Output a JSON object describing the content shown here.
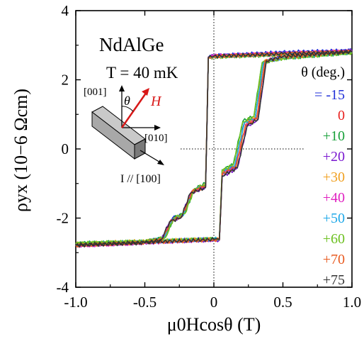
{
  "chart_data": {
    "type": "line",
    "xlabel": "μ0Hcosθ (T)",
    "ylabel": "ρyx (10−6 Ωcm)",
    "xlim": [
      -1.0,
      1.0
    ],
    "ylim": [
      -4,
      4
    ],
    "x_ticks": [
      "-1.0",
      "-0.5",
      "0",
      "0.5",
      "1.0"
    ],
    "x_tick_values": [
      -1.0,
      -0.5,
      0,
      0.5,
      1.0
    ],
    "y_ticks": [
      "4",
      "2",
      "0",
      "-2",
      "-4"
    ],
    "y_tick_values": [
      4,
      2,
      0,
      -2,
      -4
    ],
    "annotations": {
      "material": "NdAlGe",
      "temperature": "T = 40 mK",
      "dir_001": "[001]",
      "dir_010": "[010]",
      "theta": "θ",
      "field": "H",
      "current": "I // [100]"
    },
    "legend": {
      "title": "θ (deg.)",
      "placement": "right",
      "entries": [
        {
          "label": "= -15",
          "color": "#1f2fd8"
        },
        {
          "label": "0",
          "color": "#e8211e"
        },
        {
          "label": "+10",
          "color": "#18a03a"
        },
        {
          "label": "+20",
          "color": "#7a18d0"
        },
        {
          "label": "+30",
          "color": "#f0a020"
        },
        {
          "label": "+40",
          "color": "#e020c0"
        },
        {
          "label": "+50",
          "color": "#1ea8e8"
        },
        {
          "label": "+60",
          "color": "#6cc020"
        },
        {
          "label": "+70",
          "color": "#e85a20"
        },
        {
          "label": "+75",
          "color": "#333333"
        }
      ]
    },
    "series": [
      {
        "color": "#1f2fd8",
        "sweep_up": {
          "x": [
            -1.0,
            -0.5,
            -0.35,
            0.0,
            0.04,
            0.06,
            0.15,
            0.22,
            0.3,
            0.36,
            0.5,
            1.0
          ],
          "y": [
            -2.75,
            -2.7,
            -2.65,
            -2.6,
            -2.6,
            -0.7,
            -0.5,
            0.75,
            0.9,
            2.5,
            2.65,
            2.85
          ]
        },
        "sweep_down": {
          "x": [
            1.0,
            0.5,
            0.0,
            -0.04,
            -0.06,
            -0.15,
            -0.22,
            -0.3,
            -0.36,
            -0.5,
            -1.0
          ],
          "y": [
            2.85,
            2.8,
            2.7,
            2.65,
            -1.1,
            -1.2,
            -1.9,
            -2.0,
            -2.55,
            -2.7,
            -2.8
          ]
        }
      },
      {
        "color": "#e8211e",
        "sweep_up": {
          "x": [
            -1.0,
            -0.5,
            0.0,
            0.04,
            0.06,
            0.16,
            0.23,
            0.31,
            0.37,
            0.5,
            1.0
          ],
          "y": [
            -2.8,
            -2.7,
            -2.62,
            -2.62,
            -0.75,
            -0.5,
            0.7,
            0.9,
            2.55,
            2.65,
            2.8
          ]
        },
        "sweep_down": {
          "x": [
            1.0,
            0.5,
            0.0,
            -0.04,
            -0.06,
            -0.16,
            -0.23,
            -0.31,
            -0.37,
            -0.5,
            -1.0
          ],
          "y": [
            2.8,
            2.75,
            2.68,
            2.65,
            -1.05,
            -1.25,
            -1.95,
            -2.05,
            -2.6,
            -2.7,
            -2.78
          ]
        }
      },
      {
        "color": "#18a03a",
        "sweep_up": {
          "x": [
            -1.0,
            -0.5,
            0.0,
            0.04,
            0.06,
            0.14,
            0.21,
            0.29,
            0.35,
            0.5,
            1.0
          ],
          "y": [
            -2.72,
            -2.68,
            -2.6,
            -2.6,
            -0.6,
            -0.45,
            0.8,
            0.95,
            2.5,
            2.62,
            2.78
          ]
        },
        "sweep_down": {
          "x": [
            1.0,
            0.5,
            0.0,
            -0.04,
            -0.06,
            -0.14,
            -0.21,
            -0.29,
            -0.35,
            -0.5,
            -1.0
          ],
          "y": [
            2.78,
            2.72,
            2.66,
            2.62,
            -1.0,
            -1.15,
            -1.85,
            -2.0,
            -2.55,
            -2.68,
            -2.75
          ]
        }
      },
      {
        "color": "#7a18d0",
        "sweep_up": {
          "x": [
            -1.0,
            -0.5,
            0.0,
            0.04,
            0.06,
            0.17,
            0.24,
            0.32,
            0.38,
            0.5,
            1.0
          ],
          "y": [
            -2.78,
            -2.7,
            -2.64,
            -2.64,
            -0.8,
            -0.55,
            0.65,
            0.85,
            2.55,
            2.68,
            2.82
          ]
        },
        "sweep_down": {
          "x": [
            1.0,
            0.5,
            0.0,
            -0.04,
            -0.06,
            -0.17,
            -0.24,
            -0.32,
            -0.38,
            -0.5,
            -1.0
          ],
          "y": [
            2.82,
            2.76,
            2.7,
            2.66,
            -1.1,
            -1.3,
            -2.0,
            -2.1,
            -2.62,
            -2.72,
            -2.8
          ]
        }
      },
      {
        "color": "#f0a020",
        "sweep_up": {
          "x": [
            -1.0,
            -0.5,
            0.0,
            0.04,
            0.06,
            0.15,
            0.22,
            0.3,
            0.36,
            0.5,
            1.0
          ],
          "y": [
            -2.74,
            -2.66,
            -2.6,
            -2.6,
            -0.65,
            -0.5,
            0.72,
            0.92,
            2.52,
            2.64,
            2.8
          ]
        },
        "sweep_down": {
          "x": [
            1.0,
            0.5,
            0.0,
            -0.04,
            -0.06,
            -0.15,
            -0.22,
            -0.3,
            -0.36,
            -0.5,
            -1.0
          ],
          "y": [
            2.8,
            2.74,
            2.66,
            2.63,
            -1.05,
            -1.2,
            -1.9,
            -2.05,
            -2.58,
            -2.7,
            -2.76
          ]
        }
      },
      {
        "color": "#e020c0",
        "sweep_up": {
          "x": [
            -1.0,
            -0.5,
            0.0,
            0.04,
            0.06,
            0.16,
            0.23,
            0.31,
            0.37,
            0.5,
            1.0
          ],
          "y": [
            -2.8,
            -2.72,
            -2.63,
            -2.63,
            -0.7,
            -0.5,
            0.7,
            0.88,
            2.55,
            2.66,
            2.83
          ]
        },
        "sweep_down": {
          "x": [
            1.0,
            0.5,
            0.0,
            -0.04,
            -0.06,
            -0.16,
            -0.23,
            -0.31,
            -0.37,
            -0.5,
            -1.0
          ],
          "y": [
            2.83,
            2.77,
            2.69,
            2.65,
            -1.08,
            -1.22,
            -1.95,
            -2.08,
            -2.6,
            -2.72,
            -2.8
          ]
        }
      },
      {
        "color": "#1ea8e8",
        "sweep_up": {
          "x": [
            -1.0,
            -0.5,
            0.0,
            0.04,
            0.06,
            0.15,
            0.22,
            0.3,
            0.36,
            0.5,
            1.0
          ],
          "y": [
            -2.76,
            -2.69,
            -2.61,
            -2.61,
            -0.68,
            -0.48,
            0.74,
            0.9,
            2.52,
            2.64,
            2.8
          ]
        },
        "sweep_down": {
          "x": [
            1.0,
            0.5,
            0.0,
            -0.04,
            -0.06,
            -0.15,
            -0.22,
            -0.3,
            -0.36,
            -0.5,
            -1.0
          ],
          "y": [
            2.8,
            2.75,
            2.67,
            2.64,
            -1.06,
            -1.2,
            -1.92,
            -2.05,
            -2.58,
            -2.7,
            -2.77
          ]
        }
      },
      {
        "color": "#6cc020",
        "sweep_up": {
          "x": [
            -1.0,
            -0.5,
            0.0,
            0.04,
            0.06,
            0.14,
            0.21,
            0.29,
            0.35,
            0.5,
            1.0
          ],
          "y": [
            -2.73,
            -2.67,
            -2.6,
            -2.6,
            -0.62,
            -0.46,
            0.78,
            0.94,
            2.5,
            2.62,
            2.78
          ]
        },
        "sweep_down": {
          "x": [
            1.0,
            0.5,
            0.0,
            -0.04,
            -0.06,
            -0.14,
            -0.21,
            -0.29,
            -0.35,
            -0.5,
            -1.0
          ],
          "y": [
            2.78,
            2.73,
            2.66,
            2.62,
            -1.02,
            -1.16,
            -1.87,
            -2.0,
            -2.56,
            -2.68,
            -2.75
          ]
        }
      },
      {
        "color": "#e85a20",
        "sweep_up": {
          "x": [
            -1.0,
            -0.5,
            0.0,
            0.04,
            0.06,
            0.16,
            0.23,
            0.31,
            0.37,
            0.5,
            1.0
          ],
          "y": [
            -2.79,
            -2.71,
            -2.63,
            -2.63,
            -0.72,
            -0.52,
            0.68,
            0.87,
            2.54,
            2.66,
            2.82
          ]
        },
        "sweep_down": {
          "x": [
            1.0,
            0.5,
            0.0,
            -0.04,
            -0.06,
            -0.16,
            -0.23,
            -0.31,
            -0.37,
            -0.5,
            -1.0
          ],
          "y": [
            2.82,
            2.76,
            2.68,
            2.65,
            -1.08,
            -1.24,
            -1.96,
            -2.08,
            -2.6,
            -2.71,
            -2.79
          ]
        }
      },
      {
        "color": "#333333",
        "sweep_up": {
          "x": [
            -1.0,
            -0.5,
            0.0,
            0.04,
            0.06,
            0.17,
            0.24,
            0.32,
            0.38,
            0.5,
            1.0
          ],
          "y": [
            -2.77,
            -2.7,
            -2.62,
            -2.62,
            -0.78,
            -0.55,
            0.66,
            0.86,
            2.55,
            2.67,
            2.81
          ]
        },
        "sweep_down": {
          "x": [
            1.0,
            0.5,
            0.0,
            -0.04,
            -0.06,
            -0.17,
            -0.24,
            -0.32,
            -0.38,
            -0.5,
            -1.0
          ],
          "y": [
            2.81,
            2.75,
            2.68,
            2.64,
            -1.12,
            -1.28,
            -2.0,
            -2.1,
            -2.62,
            -2.72,
            -2.79
          ]
        }
      }
    ]
  }
}
